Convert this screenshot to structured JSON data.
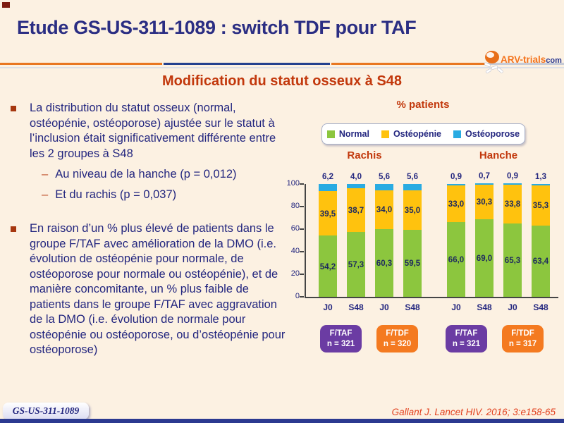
{
  "slide": {
    "title": "Etude GS-US-311-1089 : switch TDF pour TAF",
    "subtitle": "Modification du statut osseux à S48",
    "footer_badge": "GS-US-311-1089",
    "citation": "Gallant J. Lancet HIV. 2016; 3:e158-65",
    "logo": {
      "name": "ARV-trials",
      "suffix": "com"
    }
  },
  "bullets": {
    "dash": "–",
    "bullet1": "La distribution du statut osseux (normal, ostéopénie, ostéoporose) ajustée sur le statut à l’inclusion était significativement différente entre les 2 groupes à S48",
    "sub1": "Au niveau de la hanche (p = 0,012)",
    "sub2": "Et du rachis (p = 0,037)",
    "bullet2": "En raison d’un % plus élevé de patients dans le groupe F/TAF avec amélioration de la DMO (i.e. évolution de ostéopénie pour normale, de ostéoporose pour normale ou ostéopénie), et de manière concomitante, un % plus faible de patients dans le groupe F/TAF avec aggravation de la DMO (i.e. évolution de normale pour ostéopénie ou ostéoporose, ou d’ostéopénie pour ostéoporose)"
  },
  "chart_data": {
    "type": "bar",
    "stacked": true,
    "title": "% patients",
    "ylim": [
      0,
      100
    ],
    "yticks": [
      0,
      20,
      40,
      60,
      80,
      100
    ],
    "legend": [
      {
        "label": "Normal",
        "color": "#8CC63E"
      },
      {
        "label": "Ostéopénie",
        "color": "#FFC20E"
      },
      {
        "label": "Ostéoporose",
        "color": "#29ABE2"
      }
    ],
    "groups": [
      {
        "name": "Rachis",
        "bars": [
          {
            "x": "J0",
            "normal": 54.2,
            "osteopenie": 39.5,
            "osteoporose": 6.2
          },
          {
            "x": "S48",
            "normal": 57.3,
            "osteopenie": 38.7,
            "osteoporose": 4.0
          },
          {
            "x": "J0",
            "normal": 60.3,
            "osteopenie": 34.0,
            "osteoporose": 5.6
          },
          {
            "x": "S48",
            "normal": 59.5,
            "osteopenie": 35.0,
            "osteoporose": 5.6
          }
        ],
        "arms": [
          {
            "label": "F/TAF",
            "n": "n = 321",
            "color": "#6B3CA3"
          },
          {
            "label": "F/TDF",
            "n": "n = 320",
            "color": "#F47A20"
          }
        ]
      },
      {
        "name": "Hanche",
        "bars": [
          {
            "x": "J0",
            "normal": 66.0,
            "osteopenie": 33.0,
            "osteoporose": 0.9
          },
          {
            "x": "S48",
            "normal": 69.0,
            "osteopenie": 30.3,
            "osteoporose": 0.7
          },
          {
            "x": "J0",
            "normal": 65.3,
            "osteopenie": 33.8,
            "osteoporose": 0.9
          },
          {
            "x": "S48",
            "normal": 63.4,
            "osteopenie": 35.3,
            "osteoporose": 1.3
          }
        ],
        "arms": [
          {
            "label": "F/TAF",
            "n": "n = 321",
            "color": "#6B3CA3"
          },
          {
            "label": "F/TDF",
            "n": "n = 317",
            "color": "#F47A20"
          }
        ]
      }
    ]
  }
}
